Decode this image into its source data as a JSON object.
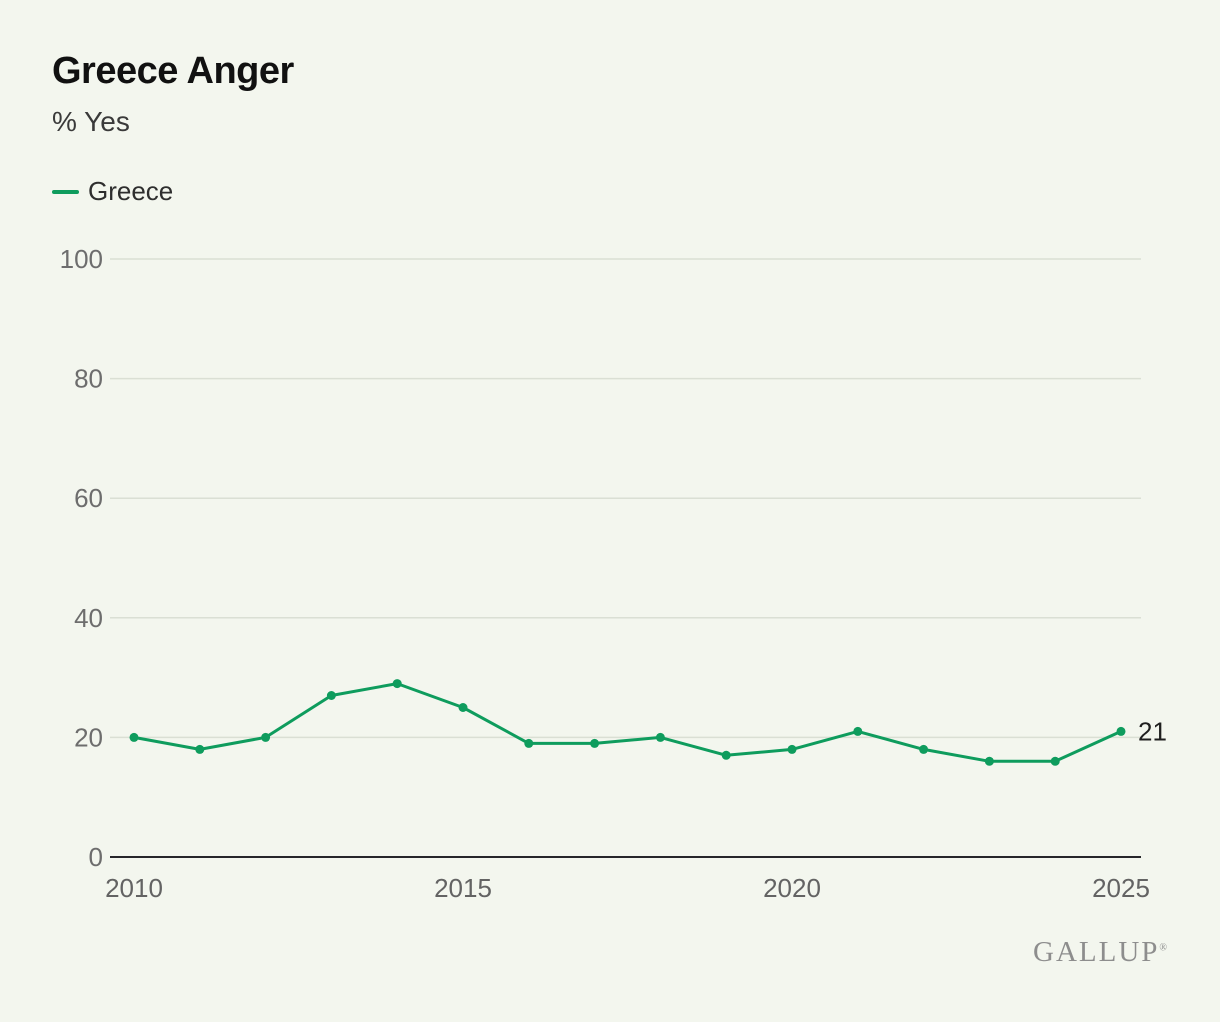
{
  "header": {
    "title": "Greece Anger",
    "subtitle": "% Yes"
  },
  "legend": {
    "label": "Greece"
  },
  "footer": {
    "brand": "GALLUP",
    "registered": "®"
  },
  "colors": {
    "line": "#0e9c5d",
    "background": "#f3f6ee",
    "gridline": "#dadfd4",
    "axis": "#26262a"
  },
  "chart_data": {
    "type": "line",
    "title": "Greece Anger",
    "subtitle": "% Yes",
    "xlabel": "",
    "ylabel": "% Yes",
    "x": [
      2010,
      2011,
      2012,
      2013,
      2014,
      2015,
      2016,
      2017,
      2018,
      2019,
      2020,
      2021,
      2022,
      2023,
      2024,
      2025
    ],
    "series": [
      {
        "name": "Greece",
        "color": "#0e9c5d",
        "values": [
          20,
          18,
          20,
          27,
          29,
          25,
          19,
          19,
          20,
          17,
          18,
          21,
          18,
          16,
          16,
          21
        ]
      }
    ],
    "end_label": "21",
    "ylim": [
      0,
      100
    ],
    "yticks": [
      0,
      20,
      40,
      60,
      80,
      100
    ],
    "xticks": [
      2010,
      2015,
      2020,
      2025
    ],
    "grid": true,
    "legend_position": "top-left"
  }
}
